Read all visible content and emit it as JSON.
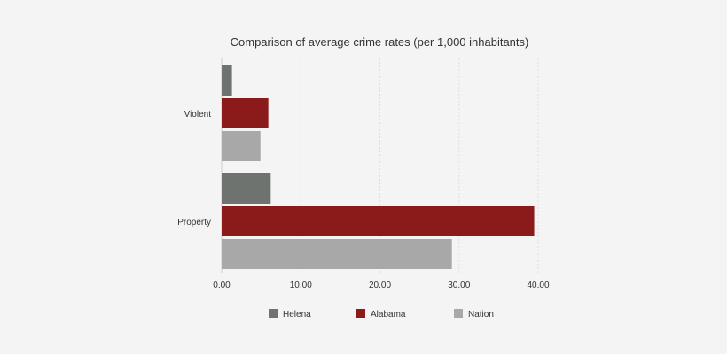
{
  "chart_data": {
    "type": "bar",
    "orientation": "horizontal",
    "title": "Comparison of average crime rates (per 1,000 inhabitants)",
    "categories": [
      "Violent",
      "Property"
    ],
    "series": [
      {
        "name": "Helena",
        "color": "#6e7370",
        "values": [
          1.3,
          6.2
        ]
      },
      {
        "name": "Alabama",
        "color": "#8b1a1a",
        "values": [
          5.9,
          39.5
        ]
      },
      {
        "name": "Nation",
        "color": "#a8a8a8",
        "values": [
          4.9,
          29.1
        ]
      }
    ],
    "x_ticks": [
      "0.00",
      "10.00",
      "20.00",
      "30.00",
      "40.00"
    ],
    "xlim": [
      0,
      40
    ],
    "grid": true,
    "legend_position": "bottom"
  }
}
